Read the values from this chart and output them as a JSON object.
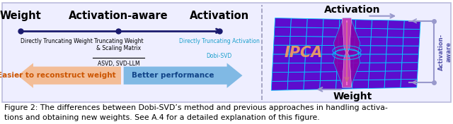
{
  "title_line1": "Figure 2: The differences between Dobi-SVD’s method and previous approaches in handling activa-",
  "title_line2": "tions and obtaining new weights. See A.4 for a detailed explanation of this figure.",
  "panel_bg": "#eeeeff",
  "border_color": "#bbbbdd",
  "axis_line_color": "#1a1a6e",
  "dot_color": "#1a1a6e",
  "label_weight": "Weight",
  "label_activation_aware": "Activation-aware",
  "label_activation": "Activation",
  "label_directly_truncating_weight": "Directly Truncating Weight",
  "label_truncating_weight": "Truncating Weight\n& Scaling Matrix",
  "label_asvd": "ASVD, SVD-LLM",
  "label_directly_truncating_activation": "Directly Truncating Activation",
  "label_dobisvd": "Dobi-SVD",
  "arrow_left_text": "Easier to reconstruct weight",
  "arrow_right_text": "Better performance",
  "arrow_left_color": "#f4b585",
  "arrow_right_color": "#6db0e0",
  "right_label_activation": "Activation",
  "right_label_weight": "Weight",
  "right_label_activation_aware": "Activation-\naware",
  "ipca_color": "#f4a460",
  "dashed_line_color": "#9999bb",
  "grid_face_color": "#5500cc",
  "grid_edge_color": "#00ccff",
  "right_arrow_color": "#8888cc"
}
